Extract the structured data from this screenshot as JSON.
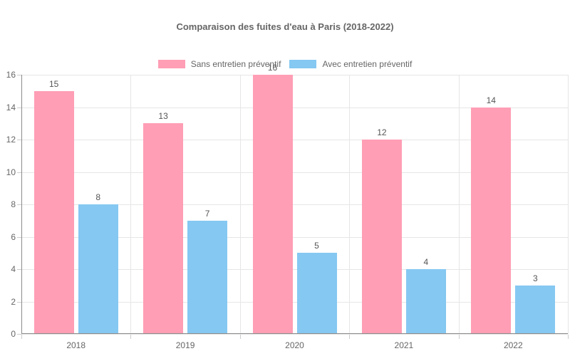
{
  "chart_data": {
    "type": "bar",
    "title": "Comparaison des fuites d'eau à Paris (2018-2022)",
    "categories": [
      "2018",
      "2019",
      "2020",
      "2021",
      "2022"
    ],
    "series": [
      {
        "name": "Sans entretien préventif",
        "color": "#FF9EB5",
        "values": [
          15,
          13,
          16,
          12,
          14
        ]
      },
      {
        "name": "Avec entretien préventif",
        "color": "#85C8F2",
        "values": [
          8,
          7,
          5,
          4,
          3
        ]
      }
    ],
    "xlabel": "",
    "ylabel": "",
    "ylim": [
      0,
      16
    ],
    "yticks": [
      0,
      2,
      4,
      6,
      8,
      10,
      12,
      14,
      16
    ],
    "grid": true,
    "legend_position": "top",
    "data_labels": true
  },
  "colors": {
    "background": "#ffffff",
    "title_text": "#666666",
    "legend_text": "#666666",
    "axis_tick_text": "#666666",
    "data_label_text": "#555555",
    "gridline": "#e6e6e6",
    "axis_line": "#8c8c8c",
    "tick_mark": "#cccccc"
  }
}
